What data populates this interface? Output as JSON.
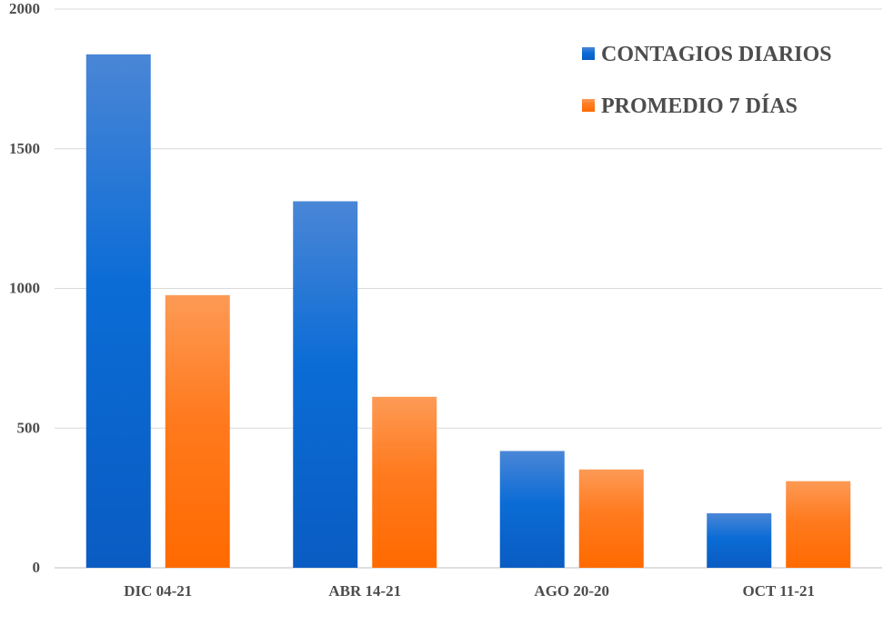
{
  "chart_data": {
    "type": "bar",
    "title": "",
    "xlabel": "",
    "ylabel": "",
    "categories": [
      "DIC 04-21",
      "ABR 14-21",
      "AGO 20-20",
      "OCT 11-21"
    ],
    "series": [
      {
        "name": "CONTAGIOS DIARIOS",
        "values": [
          1838,
          1312,
          418,
          195
        ],
        "color_top": "#4a86d6",
        "color_mid": "#0b6cd6",
        "color_bottom": "#0a5cc2"
      },
      {
        "name": "PROMEDIO 7 DÍAS",
        "values": [
          976,
          612,
          352,
          310
        ],
        "color_top": "#fd9a55",
        "color_mid": "#ff7a1e",
        "color_bottom": "#ff6a00"
      }
    ],
    "ylim": [
      0,
      2000
    ],
    "yticks": [
      0,
      500,
      1000,
      1500,
      2000
    ],
    "ytick_labels": [
      "0",
      "500",
      "1000",
      "1500",
      "2000"
    ],
    "grid": true,
    "legend_position": "top-right",
    "gridline_color": "#d9d9d9",
    "text_color": "#4d4d4d"
  }
}
